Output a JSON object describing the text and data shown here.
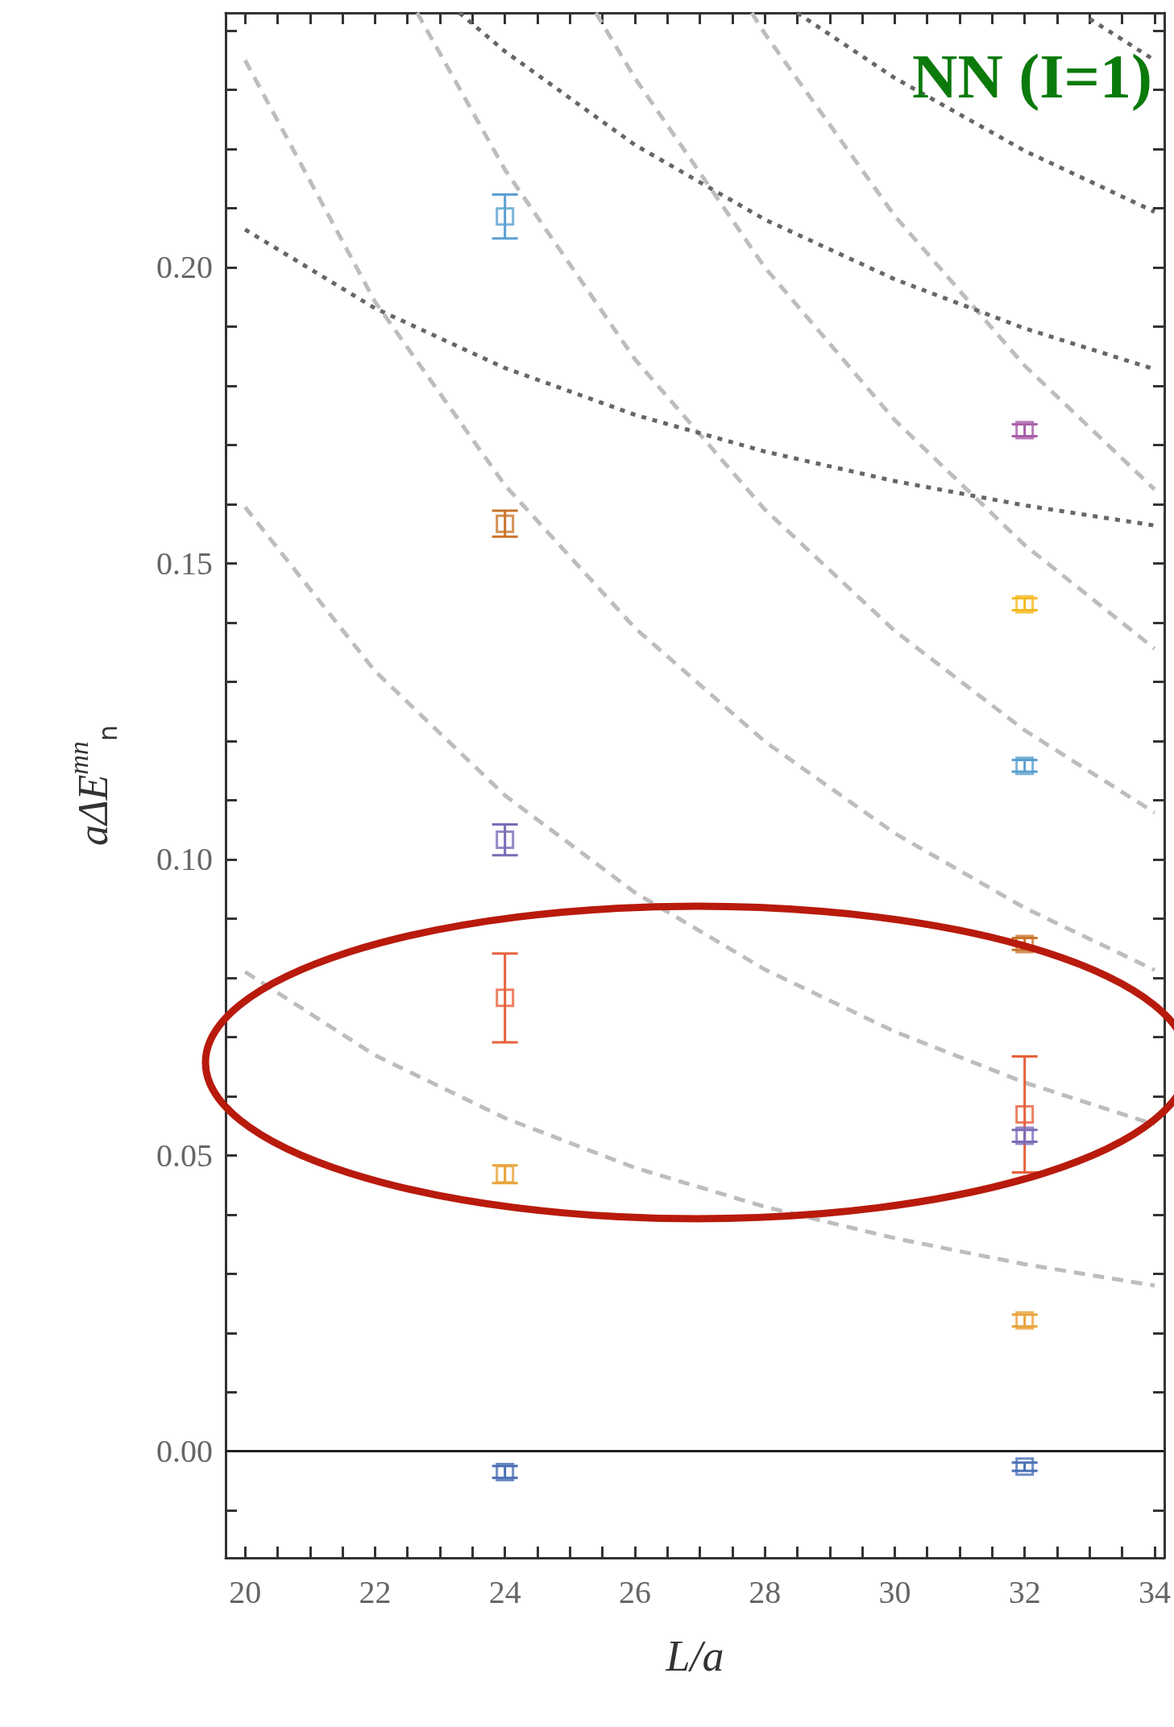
{
  "chart_data": {
    "type": "scatter",
    "title": "NN (I=1)",
    "xlabel": "L/a",
    "ylabel": "aΔE$^{mn}$$_{n}$",
    "marker": "square",
    "xlim": [
      19.7,
      34.15
    ],
    "ylim": [
      -0.018,
      0.243
    ],
    "xticks": [
      20,
      {
        "value": 20.5,
        "label": null
      },
      {
        "value": 21,
        "label": null
      },
      {
        "value": 21.5,
        "label": null
      },
      22,
      {
        "value": 22.5,
        "label": null
      },
      {
        "value": 23,
        "label": null
      },
      {
        "value": 23.5,
        "label": null
      },
      24,
      {
        "value": 24.5,
        "label": null
      },
      {
        "value": 25,
        "label": null
      },
      {
        "value": 25.5,
        "label": null
      },
      26,
      {
        "value": 26.5,
        "label": null
      },
      {
        "value": 27,
        "label": null
      },
      {
        "value": 27.5,
        "label": null
      },
      28,
      {
        "value": 28.5,
        "label": null
      },
      {
        "value": 29,
        "label": null
      },
      {
        "value": 29.5,
        "label": null
      },
      30,
      {
        "value": 30.5,
        "label": null
      },
      {
        "value": 31,
        "label": null
      },
      {
        "value": 31.5,
        "label": null
      },
      32,
      {
        "value": 32.5,
        "label": null
      },
      {
        "value": 33,
        "label": null
      },
      {
        "value": 33.5,
        "label": null
      },
      34
    ],
    "yticks": [
      {
        "value": -0.01,
        "label": null
      },
      {
        "value": 0,
        "label": "0.00"
      },
      {
        "value": 0.01,
        "label": null
      },
      {
        "value": 0.02,
        "label": null
      },
      {
        "value": 0.03,
        "label": null
      },
      {
        "value": 0.04,
        "label": null
      },
      {
        "value": 0.05,
        "label": "0.05"
      },
      {
        "value": 0.06,
        "label": null
      },
      {
        "value": 0.07,
        "label": null
      },
      {
        "value": 0.08,
        "label": null
      },
      {
        "value": 0.09,
        "label": null
      },
      {
        "value": 0.1,
        "label": "0.10"
      },
      {
        "value": 0.11,
        "label": null
      },
      {
        "value": 0.12,
        "label": null
      },
      {
        "value": 0.13,
        "label": null
      },
      {
        "value": 0.14,
        "label": null
      },
      {
        "value": 0.15,
        "label": "0.15"
      },
      {
        "value": 0.16,
        "label": null
      },
      {
        "value": 0.17,
        "label": null
      },
      {
        "value": 0.18,
        "label": null
      },
      {
        "value": 0.19,
        "label": null
      },
      {
        "value": 0.2,
        "label": "0.20"
      },
      {
        "value": 0.21,
        "label": null
      },
      {
        "value": 0.22,
        "label": null
      },
      {
        "value": 0.23,
        "label": null
      },
      {
        "value": 0.24,
        "label": null
      }
    ],
    "ref_lines": [
      {
        "axis": "y",
        "value": 0,
        "color": "#222222",
        "line_style": "solid"
      }
    ],
    "series": [
      {
        "type": "line",
        "marker": "none",
        "color": "#bdbdbd",
        "line_style": "dashed",
        "x": [
          20,
          22,
          24,
          26,
          28,
          30,
          32,
          34
        ],
        "values": [
          0.081,
          0.0669,
          0.0563,
          0.0479,
          0.0413,
          0.036,
          0.0316,
          0.028
        ]
      },
      {
        "type": "line",
        "marker": "none",
        "color": "#bdbdbd",
        "line_style": "dashed",
        "x": [
          20,
          22,
          24,
          26,
          28,
          30,
          32,
          34
        ],
        "values": [
          0.1595,
          0.1318,
          0.1108,
          0.0944,
          0.0814,
          0.0709,
          0.0623,
          0.0552
        ]
      },
      {
        "type": "line",
        "marker": "none",
        "color": "#bdbdbd",
        "line_style": "dashed",
        "x": [
          20,
          22,
          24,
          26,
          28,
          30,
          32,
          34
        ],
        "values": [
          0.235,
          0.1942,
          0.1632,
          0.1391,
          0.1199,
          0.1044,
          0.0918,
          0.0813
        ]
      },
      {
        "type": "line",
        "marker": "none",
        "color": "#bdbdbd",
        "line_style": "dashed",
        "x": [
          22.65,
          24,
          26,
          28,
          30,
          32,
          34
        ],
        "values": [
          0.243,
          0.2165,
          0.1845,
          0.1591,
          0.1386,
          0.1218,
          0.1079
        ]
      },
      {
        "type": "line",
        "marker": "none",
        "color": "#bdbdbd",
        "line_style": "dashed",
        "x": [
          25.4,
          26,
          28,
          30,
          32,
          34
        ],
        "values": [
          0.243,
          0.232,
          0.2,
          0.1742,
          0.1531,
          0.1356
        ]
      },
      {
        "type": "line",
        "marker": "none",
        "color": "#bdbdbd",
        "line_style": "dashed",
        "x": [
          27.8,
          28,
          30,
          32,
          34
        ],
        "values": [
          0.243,
          0.2395,
          0.2087,
          0.1834,
          0.1625
        ]
      },
      {
        "type": "line",
        "marker": "none",
        "color": "#666666",
        "line_style": "dotted",
        "x": [
          20,
          22,
          24,
          26,
          28,
          30,
          32,
          34
        ],
        "values": [
          0.2064,
          0.1931,
          0.183,
          0.1751,
          0.1689,
          0.1639,
          0.1598,
          0.1564
        ]
      },
      {
        "type": "line",
        "marker": "none",
        "color": "#666666",
        "line_style": "dotted",
        "x": [
          23.3,
          24,
          26,
          28,
          30,
          32,
          34
        ],
        "values": [
          0.243,
          0.2365,
          0.2207,
          0.2081,
          0.198,
          0.1897,
          0.1828
        ]
      },
      {
        "type": "line",
        "marker": "none",
        "color": "#666666",
        "line_style": "dotted",
        "x": [
          28.5,
          30,
          32,
          34
        ],
        "values": [
          0.243,
          0.232,
          0.2197,
          0.2094
        ]
      },
      {
        "type": "line",
        "marker": "none",
        "color": "#666666",
        "line_style": "dotted",
        "x": [
          33,
          34
        ],
        "values": [
          0.242,
          0.235
        ]
      },
      {
        "color": "#4a6fb5",
        "x": [
          24,
          32
        ],
        "values": [
          -0.0035,
          -0.0026
        ],
        "errors": [
          0.001,
          0.0007
        ]
      },
      {
        "color": "#e8a33a",
        "x": [
          24,
          32
        ],
        "values": [
          0.0468,
          0.0221
        ],
        "errors": [
          0.0015,
          0.001
        ]
      },
      {
        "color": "#e8603c",
        "x": [
          24,
          32
        ],
        "values": [
          0.0766,
          0.0569
        ],
        "errors": [
          0.0075,
          0.0098
        ]
      },
      {
        "color": "#7b6bb8",
        "x": [
          24,
          32
        ],
        "values": [
          0.1033,
          0.0533
        ],
        "errors": [
          0.0026,
          0.001
        ]
      },
      {
        "color": "#c8742a",
        "x": [
          24,
          32
        ],
        "values": [
          0.1567,
          0.0857
        ],
        "errors": [
          0.0022,
          0.001
        ]
      },
      {
        "color": "#5b9fd0",
        "x": [
          24,
          32
        ],
        "values": [
          0.2086,
          0.1158
        ],
        "errors": [
          0.0037,
          0.001
        ]
      },
      {
        "color": "#a65ca8",
        "x": [
          32
        ],
        "values": [
          0.1725
        ],
        "errors": [
          0.001
        ]
      },
      {
        "color": "#f5b921",
        "x": [
          32
        ],
        "values": [
          0.1431
        ],
        "errors": [
          0.001
        ]
      }
    ]
  }
}
